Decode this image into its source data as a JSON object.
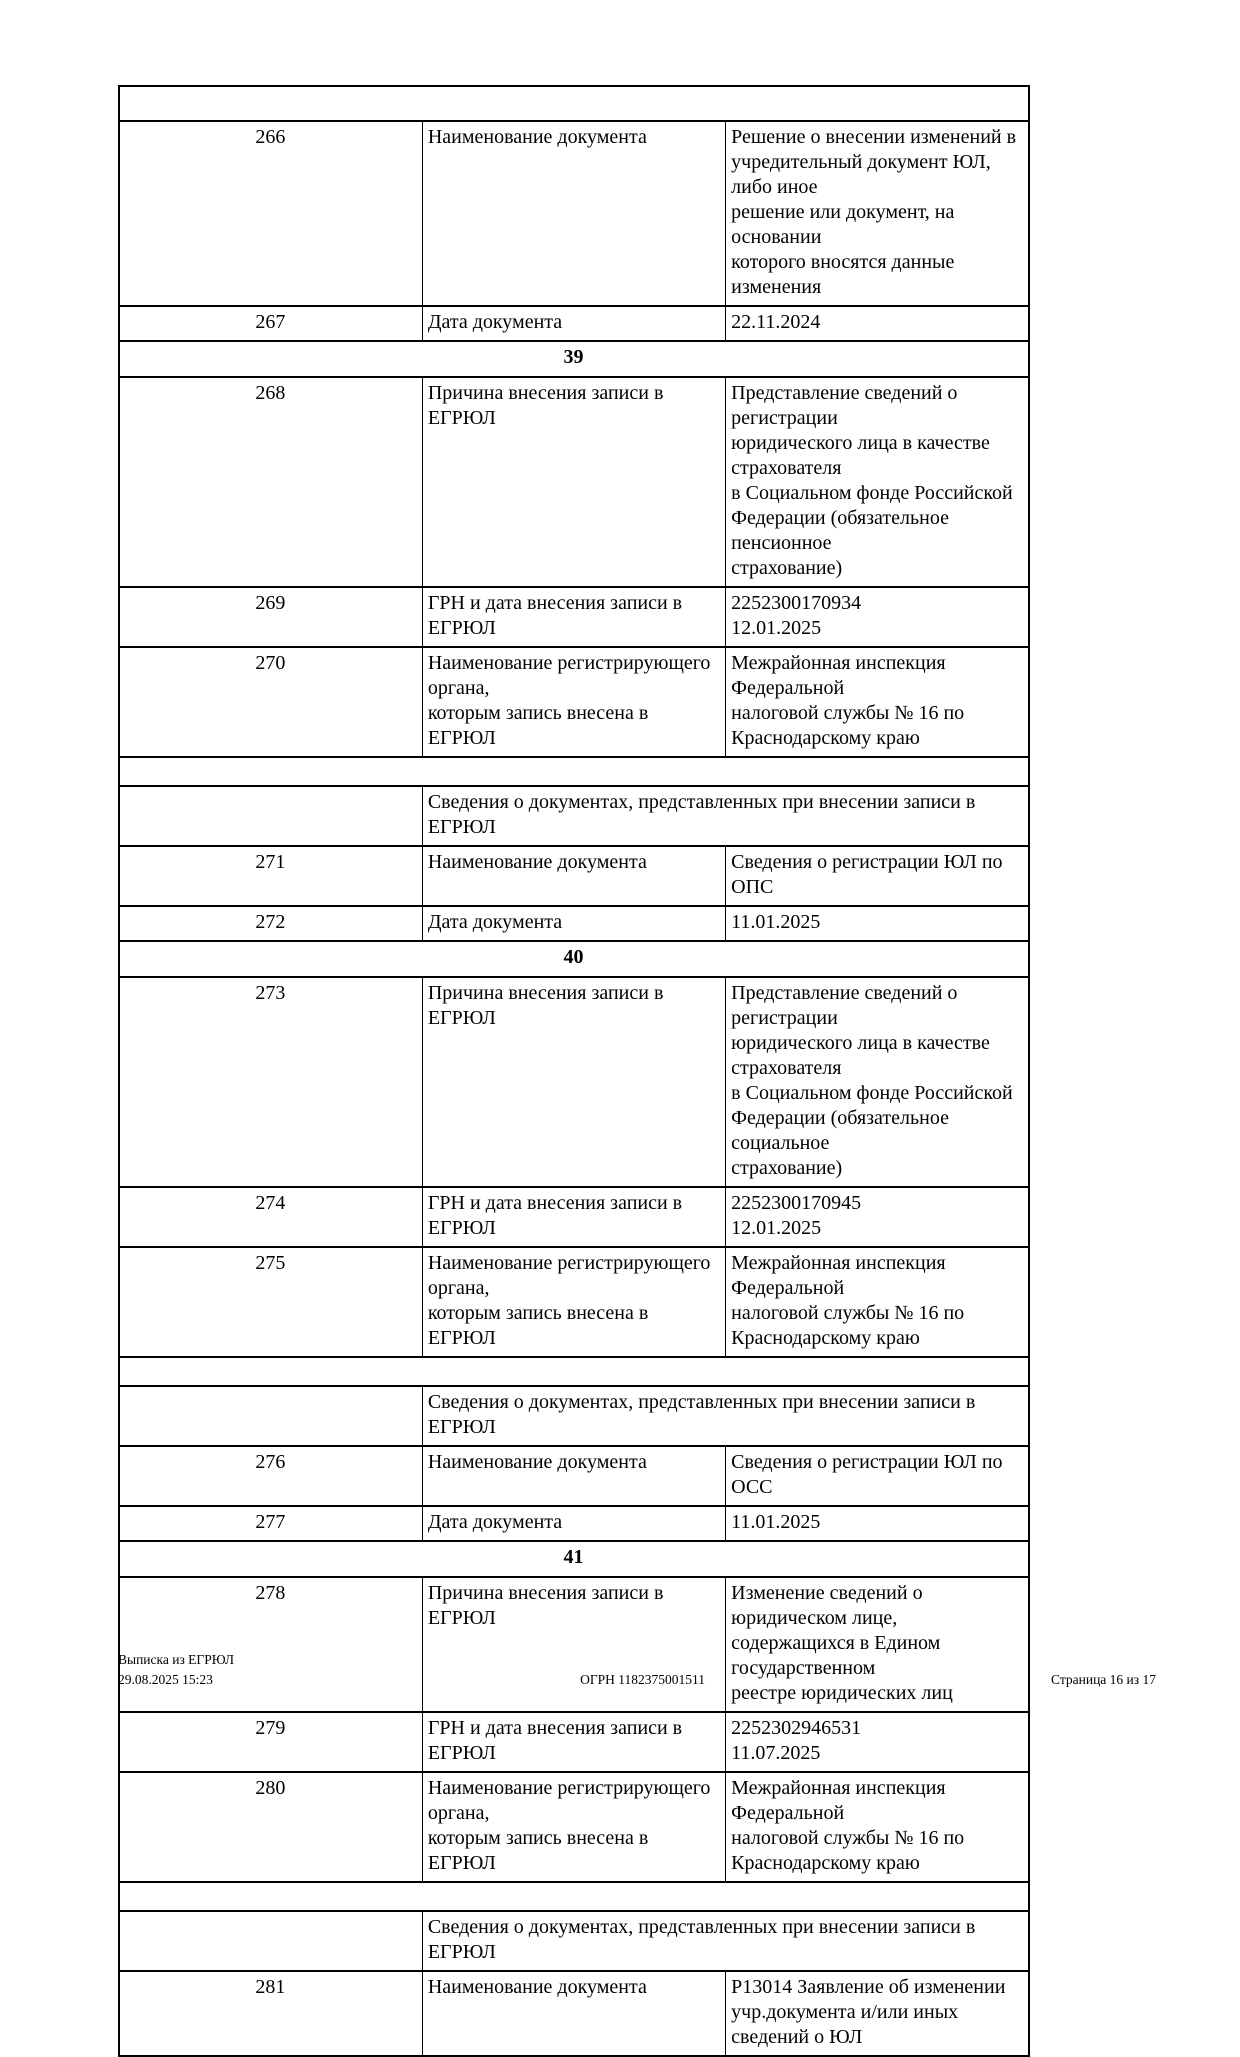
{
  "table": {
    "docs_header_label": "Сведения о документах, представленных при внесении записи в ЕГРЮЛ",
    "rows": [
      {
        "type": "spacer_top"
      },
      {
        "type": "data",
        "num": "266",
        "label": "Наименование документа",
        "value": "Решение о внесении изменений в\nучредительный документ ЮЛ, либо иное\nрешение или документ, на основании\nкоторого вносятся данные изменения"
      },
      {
        "type": "data",
        "num": "267",
        "label": "Дата документа",
        "value": "22.11.2024"
      },
      {
        "type": "section",
        "num": "39"
      },
      {
        "type": "data",
        "num": "268",
        "label": "Причина внесения записи в ЕГРЮЛ",
        "value": "Представление сведений о регистрации\nюридического лица в качестве страхователя\nв Социальном фонде Российской\nФедерации (обязательное пенсионное\nстрахование)"
      },
      {
        "type": "data",
        "num": "269",
        "label": "ГРН и дата внесения записи в ЕГРЮЛ",
        "value": "2252300170934\n12.01.2025"
      },
      {
        "type": "data",
        "num": "270",
        "label": "Наименование регистрирующего органа,\nкоторым запись внесена в ЕГРЮЛ",
        "value": "Межрайонная инспекция Федеральной\nналоговой службы № 16 по\nКраснодарскому краю"
      },
      {
        "type": "spacer"
      },
      {
        "type": "docs_header"
      },
      {
        "type": "data",
        "num": "271",
        "label": "Наименование документа",
        "value": "Сведения о регистрации ЮЛ по ОПС"
      },
      {
        "type": "data",
        "num": "272",
        "label": "Дата документа",
        "value": "11.01.2025"
      },
      {
        "type": "section",
        "num": "40"
      },
      {
        "type": "data",
        "num": "273",
        "label": "Причина внесения записи в ЕГРЮЛ",
        "value": "Представление сведений о регистрации\nюридического лица в качестве страхователя\nв Социальном фонде Российской\nФедерации (обязательное социальное\nстрахование)"
      },
      {
        "type": "data",
        "num": "274",
        "label": "ГРН и дата внесения записи в ЕГРЮЛ",
        "value": "2252300170945\n12.01.2025"
      },
      {
        "type": "data",
        "num": "275",
        "label": "Наименование регистрирующего органа,\nкоторым запись внесена в ЕГРЮЛ",
        "value": "Межрайонная инспекция Федеральной\nналоговой службы № 16 по\nКраснодарскому краю"
      },
      {
        "type": "spacer"
      },
      {
        "type": "docs_header"
      },
      {
        "type": "data",
        "num": "276",
        "label": "Наименование документа",
        "value": "Сведения о регистрации ЮЛ по ОСС"
      },
      {
        "type": "data",
        "num": "277",
        "label": "Дата документа",
        "value": "11.01.2025"
      },
      {
        "type": "section",
        "num": "41"
      },
      {
        "type": "data",
        "num": "278",
        "label": "Причина внесения записи в ЕГРЮЛ",
        "value": "Изменение сведений о юридическом лице,\nсодержащихся в Едином государственном\nреестре юридических лиц"
      },
      {
        "type": "data",
        "num": "279",
        "label": "ГРН и дата внесения записи в ЕГРЮЛ",
        "value": "2252302946531\n11.07.2025"
      },
      {
        "type": "data",
        "num": "280",
        "label": "Наименование регистрирующего органа,\nкоторым запись внесена в ЕГРЮЛ",
        "value": "Межрайонная инспекция Федеральной\nналоговой службы № 16 по\nКраснодарскому краю"
      },
      {
        "type": "spacer"
      },
      {
        "type": "docs_header"
      },
      {
        "type": "data",
        "num": "281",
        "label": "Наименование документа",
        "value": "Р13014 Заявление об изменении\nучр.документа и/или иных сведений о ЮЛ"
      }
    ]
  },
  "footer": {
    "left_line1": "Выписка из ЕГРЮЛ",
    "left_line2": "29.08.2025 15:23",
    "center": "ОГРН 1182375001511",
    "right": "Страница 16 из 17"
  }
}
